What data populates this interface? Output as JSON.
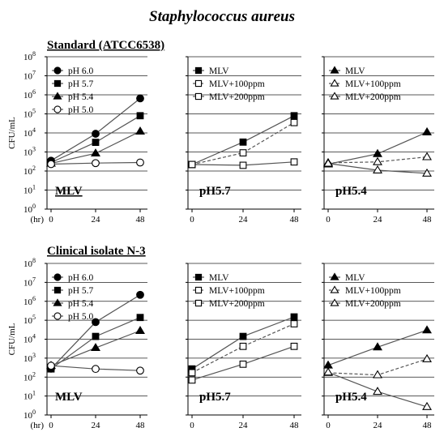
{
  "title": "Staphylococcus aureus",
  "sections": [
    {
      "label": "Standard (ATCC6538)"
    },
    {
      "label": "Clinical isolate  N-3"
    }
  ],
  "ylabel": "CFU/mL",
  "x_unit_label": "(hr)",
  "y_tick_labels": [
    "10^0",
    "10^1",
    "10^2",
    "10^3",
    "10^4",
    "10^5",
    "10^6",
    "10^7",
    "10^8"
  ],
  "colors": {
    "line": "#555555",
    "marker": "#000000",
    "grid": "#222222"
  },
  "chart_data": [
    {
      "type": "line",
      "row": 0,
      "col": 0,
      "sublabel": "MLV",
      "sublabel_underline": true,
      "x": [
        0,
        24,
        48
      ],
      "xlim": [
        0,
        48
      ],
      "ylog": true,
      "ylim": [
        1,
        100000000
      ],
      "legend_placement": "top-left",
      "series": [
        {
          "name": "pH 6.0",
          "marker": "circle",
          "fill": "filled",
          "dash": false,
          "values": [
            350,
            9000,
            650000
          ]
        },
        {
          "name": "pH 5.7",
          "marker": "square",
          "fill": "filled",
          "dash": false,
          "values": [
            280,
            3200,
            80000
          ]
        },
        {
          "name": "pH 5.4",
          "marker": "triangle",
          "fill": "filled",
          "dash": false,
          "values": [
            250,
            850,
            12000
          ]
        },
        {
          "name": "pH 5.0",
          "marker": "circle",
          "fill": "open",
          "dash": false,
          "values": [
            230,
            260,
            280
          ]
        }
      ]
    },
    {
      "type": "line",
      "row": 0,
      "col": 1,
      "sublabel": "pH5.7",
      "sublabel_underline": false,
      "x": [
        0,
        24,
        48
      ],
      "xlim": [
        0,
        48
      ],
      "ylog": true,
      "ylim": [
        1,
        100000000
      ],
      "legend_placement": "top-left",
      "series": [
        {
          "name": "MLV",
          "marker": "square",
          "fill": "filled",
          "dash": false,
          "values": [
            220,
            3300,
            80000
          ]
        },
        {
          "name": "MLV+100ppm",
          "marker": "square",
          "fill": "open",
          "dash": true,
          "values": [
            220,
            900,
            35000
          ]
        },
        {
          "name": "MLV+200ppm",
          "marker": "square",
          "fill": "open",
          "dash": false,
          "values": [
            220,
            200,
            300
          ]
        }
      ]
    },
    {
      "type": "line",
      "row": 0,
      "col": 2,
      "sublabel": "pH5.4",
      "sublabel_underline": false,
      "x": [
        0,
        24,
        48
      ],
      "xlim": [
        0,
        48
      ],
      "ylog": true,
      "ylim": [
        1,
        100000000
      ],
      "legend_placement": "top-left",
      "series": [
        {
          "name": "MLV",
          "marker": "triangle",
          "fill": "filled",
          "dash": false,
          "values": [
            230,
            800,
            11000
          ]
        },
        {
          "name": "MLV+100ppm",
          "marker": "triangle",
          "fill": "open",
          "dash": true,
          "values": [
            270,
            300,
            550
          ]
        },
        {
          "name": "MLV+200ppm",
          "marker": "triangle",
          "fill": "open",
          "dash": false,
          "values": [
            250,
            110,
            75
          ]
        }
      ]
    },
    {
      "type": "line",
      "row": 1,
      "col": 0,
      "sublabel": "MLV",
      "sublabel_underline": false,
      "x": [
        0,
        24,
        48
      ],
      "xlim": [
        0,
        48
      ],
      "ylog": true,
      "ylim": [
        1,
        100000000
      ],
      "legend_placement": "top-left",
      "series": [
        {
          "name": "pH 6.0",
          "marker": "circle",
          "fill": "filled",
          "dash": false,
          "values": [
            280,
            80000,
            2200000
          ]
        },
        {
          "name": "pH 5.7",
          "marker": "square",
          "fill": "filled",
          "dash": false,
          "values": [
            270,
            14000,
            140000
          ]
        },
        {
          "name": "pH 5.4",
          "marker": "triangle",
          "fill": "filled",
          "dash": false,
          "values": [
            400,
            3500,
            28000
          ]
        },
        {
          "name": "pH 5.0",
          "marker": "circle",
          "fill": "open",
          "dash": false,
          "values": [
            400,
            270,
            220
          ]
        }
      ]
    },
    {
      "type": "line",
      "row": 1,
      "col": 1,
      "sublabel": "pH5.7",
      "sublabel_underline": false,
      "x": [
        0,
        24,
        48
      ],
      "xlim": [
        0,
        48
      ],
      "ylog": true,
      "ylim": [
        1,
        100000000
      ],
      "legend_placement": "top-left",
      "series": [
        {
          "name": "MLV",
          "marker": "square",
          "fill": "filled",
          "dash": false,
          "values": [
            270,
            14000,
            150000
          ]
        },
        {
          "name": "MLV+100ppm",
          "marker": "square",
          "fill": "open",
          "dash": true,
          "values": [
            170,
            4200,
            65000
          ]
        },
        {
          "name": "MLV+200ppm",
          "marker": "square",
          "fill": "open",
          "dash": false,
          "values": [
            70,
            480,
            4200
          ]
        }
      ]
    },
    {
      "type": "line",
      "row": 1,
      "col": 2,
      "sublabel": "pH5.4",
      "sublabel_underline": false,
      "x": [
        0,
        24,
        48
      ],
      "xlim": [
        0,
        48
      ],
      "ylog": true,
      "ylim": [
        1,
        100000000
      ],
      "legend_placement": "top-left",
      "series": [
        {
          "name": "MLV",
          "marker": "triangle",
          "fill": "filled",
          "dash": false,
          "values": [
            420,
            3800,
            30000
          ]
        },
        {
          "name": "MLV+100ppm",
          "marker": "triangle",
          "fill": "open",
          "dash": true,
          "values": [
            170,
            130,
            900
          ]
        },
        {
          "name": "MLV+200ppm",
          "marker": "triangle",
          "fill": "open",
          "dash": false,
          "values": [
            180,
            17,
            2.7
          ]
        }
      ]
    }
  ]
}
